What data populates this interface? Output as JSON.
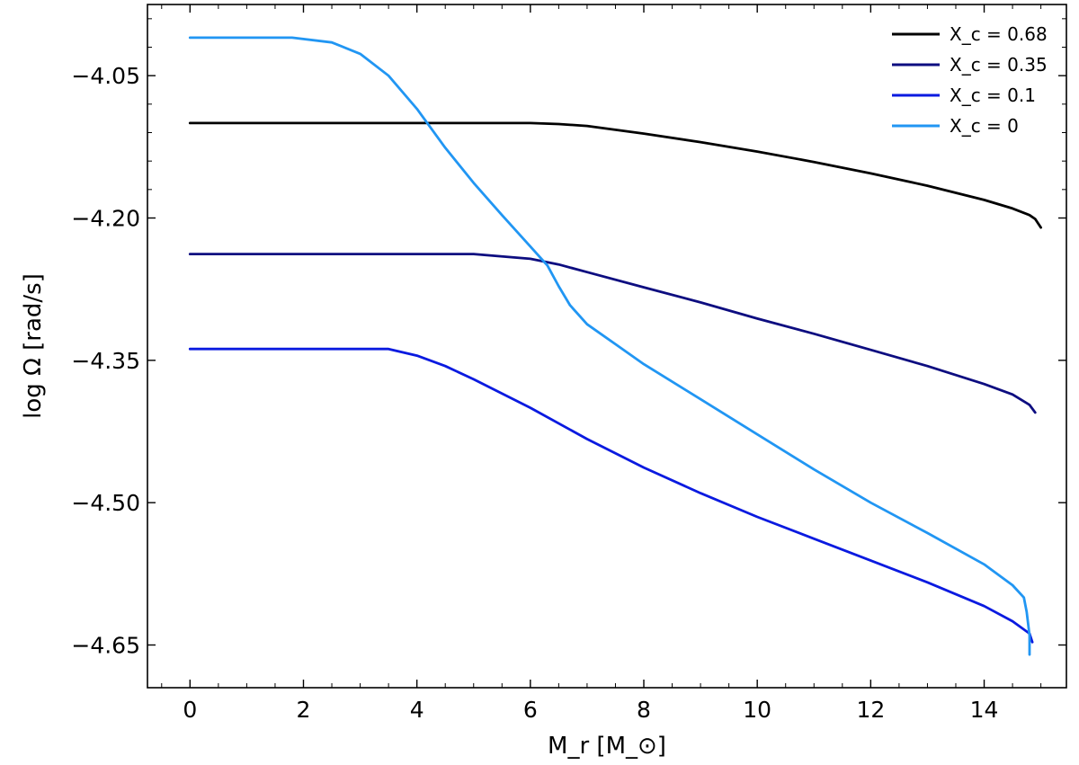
{
  "chart_data": {
    "type": "line",
    "xlabel": "M_r [M_⊙]",
    "ylabel": "log Ω [rad/s]",
    "xlim": [
      -0.75,
      15.45
    ],
    "ylim": [
      -4.695,
      -3.975
    ],
    "xticks": [
      0,
      2,
      4,
      6,
      8,
      10,
      12,
      14
    ],
    "xtick_labels": [
      "0",
      "2",
      "4",
      "6",
      "8",
      "10",
      "12",
      "14"
    ],
    "yticks": [
      -4.05,
      -4.2,
      -4.35,
      -4.5,
      -4.65
    ],
    "ytick_labels": [
      "−4.05",
      "−4.20",
      "−4.35",
      "−4.50",
      "−4.65"
    ],
    "grid": false,
    "legend_position": "top-right",
    "series": [
      {
        "name": "X_c = 0.68",
        "color": "#000000",
        "x": [
          0,
          2,
          4,
          6,
          6.5,
          7,
          8,
          9,
          10,
          11,
          12,
          13,
          14,
          14.5,
          14.8,
          14.9,
          15.0
        ],
        "y": [
          -4.1,
          -4.1,
          -4.1,
          -4.1,
          -4.101,
          -4.103,
          -4.111,
          -4.12,
          -4.13,
          -4.141,
          -4.153,
          -4.166,
          -4.181,
          -4.19,
          -4.197,
          -4.201,
          -4.21
        ]
      },
      {
        "name": "X_c = 0.35",
        "color": "#0d0d80",
        "x": [
          0,
          2,
          4,
          5,
          6,
          6.5,
          7,
          8,
          9,
          10,
          11,
          12,
          13,
          14,
          14.5,
          14.8,
          14.9
        ],
        "y": [
          -4.238,
          -4.238,
          -4.238,
          -4.238,
          -4.243,
          -4.249,
          -4.257,
          -4.273,
          -4.289,
          -4.306,
          -4.322,
          -4.339,
          -4.356,
          -4.375,
          -4.386,
          -4.397,
          -4.405
        ]
      },
      {
        "name": "X_c = 0.1",
        "color": "#0a1ae0",
        "x": [
          0,
          1,
          2,
          3,
          3.5,
          4,
          4.5,
          5,
          6,
          7,
          8,
          9,
          10,
          11,
          12,
          13,
          14,
          14.5,
          14.8,
          14.85
        ],
        "y": [
          -4.338,
          -4.338,
          -4.338,
          -4.338,
          -4.338,
          -4.345,
          -4.356,
          -4.37,
          -4.4,
          -4.433,
          -4.463,
          -4.49,
          -4.515,
          -4.538,
          -4.561,
          -4.584,
          -4.609,
          -4.625,
          -4.638,
          -4.647
        ]
      },
      {
        "name": "X_c = 0",
        "color": "#2196f3",
        "x": [
          0,
          1,
          1.8,
          2.5,
          3.0,
          3.5,
          4.0,
          4.5,
          5.0,
          5.5,
          6.0,
          6.3,
          6.5,
          6.7,
          7.0,
          7.5,
          8,
          9,
          10,
          11,
          12,
          13,
          14,
          14.5,
          14.7,
          14.75,
          14.8,
          14.8
        ],
        "y": [
          -4.01,
          -4.01,
          -4.01,
          -4.015,
          -4.027,
          -4.05,
          -4.085,
          -4.126,
          -4.163,
          -4.197,
          -4.23,
          -4.25,
          -4.272,
          -4.292,
          -4.312,
          -4.333,
          -4.354,
          -4.391,
          -4.428,
          -4.465,
          -4.5,
          -4.532,
          -4.565,
          -4.587,
          -4.6,
          -4.615,
          -4.64,
          -4.66
        ]
      }
    ]
  }
}
